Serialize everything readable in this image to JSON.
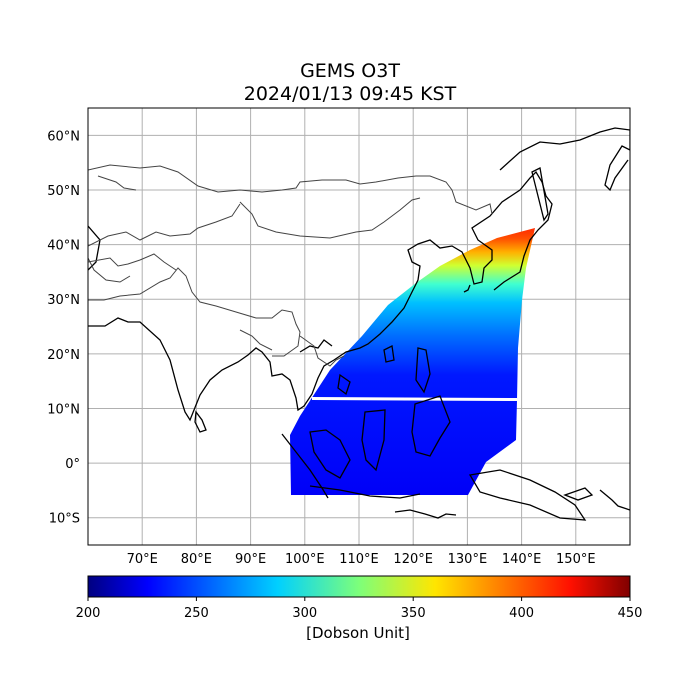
{
  "title": "GEMS O3T",
  "subtitle": "2024/01/13 09:45 KST",
  "map": {
    "lon_range": [
      60,
      160
    ],
    "lat_range": [
      -15,
      65
    ],
    "lon_ticks": [
      "70°E",
      "80°E",
      "90°E",
      "100°E",
      "110°E",
      "120°E",
      "130°E",
      "140°E",
      "150°E"
    ],
    "lat_ticks": [
      "60°N",
      "50°N",
      "40°N",
      "30°N",
      "20°N",
      "10°N",
      "0°",
      "10°S"
    ],
    "grid": true,
    "projection": "PlateCarree"
  },
  "colorbar": {
    "label": "[Dobson Unit]",
    "min": 200,
    "max": 450,
    "ticks": [
      "200",
      "250",
      "300",
      "350",
      "400",
      "450"
    ],
    "colormap": "jet"
  },
  "field": {
    "quantity": "Total column ozone",
    "rows_lat_from_south": [
      {
        "lat": -5,
        "value": 240
      },
      {
        "lat": 5,
        "value": 240
      },
      {
        "lat": 12,
        "value": 243
      },
      {
        "lat": 20,
        "value": 250
      },
      {
        "lat": 25,
        "value": 265
      },
      {
        "lat": 30,
        "value": 295
      },
      {
        "lat": 34,
        "value": 320
      },
      {
        "lat": 37,
        "value": 355
      },
      {
        "lat": 40,
        "value": 400
      },
      {
        "lat": 43,
        "value": 415
      }
    ]
  },
  "colors": {
    "coast": "#000000",
    "border": "#444444",
    "grid": "#b0b0b0"
  }
}
